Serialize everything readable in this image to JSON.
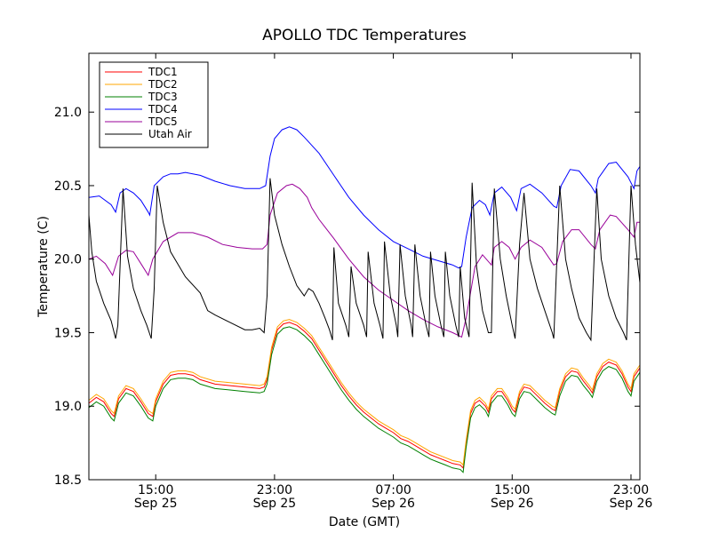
{
  "chart_data": {
    "type": "line",
    "title": "APOLLO TDC Temperatures",
    "xlabel": "Date (GMT)",
    "ylabel": "Temperature (C)",
    "xlim_hours": [
      10.5,
      47.6
    ],
    "ylim": [
      18.5,
      21.4
    ],
    "yticks": [
      18.5,
      19.0,
      19.5,
      20.0,
      20.5,
      21.0
    ],
    "ytick_labels": [
      "18.5",
      "19.0",
      "19.5",
      "20.0",
      "20.5",
      "21.0"
    ],
    "xticks": [
      {
        "hours": 15,
        "time": "15:00",
        "date": "Sep 25"
      },
      {
        "hours": 23,
        "time": "23:00",
        "date": "Sep 25"
      },
      {
        "hours": 31,
        "time": "07:00",
        "date": "Sep 26"
      },
      {
        "hours": 39,
        "time": "15:00",
        "date": "Sep 26"
      },
      {
        "hours": 47,
        "time": "23:00",
        "date": "Sep 26"
      }
    ],
    "legend_position": "top-left",
    "series": [
      {
        "name": "TDC1",
        "color": "#ff0000",
        "offset": 0.0
      },
      {
        "name": "TDC2",
        "color": "#ffa500",
        "offset": 0.02
      },
      {
        "name": "TDC3",
        "color": "#008000",
        "offset": -0.03
      },
      {
        "name": "TDC4",
        "color": "#0000ff",
        "points": [
          [
            10.5,
            20.42
          ],
          [
            11.2,
            20.43
          ],
          [
            12.0,
            20.37
          ],
          [
            12.3,
            20.32
          ],
          [
            12.6,
            20.45
          ],
          [
            13.0,
            20.48
          ],
          [
            13.5,
            20.45
          ],
          [
            14.0,
            20.4
          ],
          [
            14.5,
            20.32
          ],
          [
            14.6,
            20.3
          ],
          [
            14.9,
            20.5
          ],
          [
            15.5,
            20.56
          ],
          [
            16.0,
            20.58
          ],
          [
            16.5,
            20.58
          ],
          [
            17.0,
            20.59
          ],
          [
            18.0,
            20.57
          ],
          [
            19.0,
            20.53
          ],
          [
            20.0,
            20.5
          ],
          [
            21.0,
            20.48
          ],
          [
            22.0,
            20.48
          ],
          [
            22.4,
            20.5
          ],
          [
            22.7,
            20.7
          ],
          [
            23.0,
            20.82
          ],
          [
            23.5,
            20.88
          ],
          [
            24.0,
            20.9
          ],
          [
            24.5,
            20.88
          ],
          [
            25.0,
            20.83
          ],
          [
            26.0,
            20.72
          ],
          [
            27.0,
            20.57
          ],
          [
            28.0,
            20.42
          ],
          [
            29.0,
            20.3
          ],
          [
            30.0,
            20.2
          ],
          [
            31.0,
            20.12
          ],
          [
            32.0,
            20.07
          ],
          [
            33.0,
            20.02
          ],
          [
            34.0,
            19.99
          ],
          [
            35.0,
            19.96
          ],
          [
            35.4,
            19.94
          ],
          [
            35.6,
            19.95
          ],
          [
            35.9,
            20.15
          ],
          [
            36.3,
            20.35
          ],
          [
            36.8,
            20.4
          ],
          [
            37.2,
            20.37
          ],
          [
            37.5,
            20.3
          ],
          [
            37.8,
            20.45
          ],
          [
            38.3,
            20.49
          ],
          [
            38.9,
            20.42
          ],
          [
            39.3,
            20.33
          ],
          [
            39.6,
            20.48
          ],
          [
            40.2,
            20.51
          ],
          [
            41.0,
            20.45
          ],
          [
            41.8,
            20.36
          ],
          [
            42.0,
            20.35
          ],
          [
            42.3,
            20.5
          ],
          [
            42.9,
            20.61
          ],
          [
            43.5,
            20.6
          ],
          [
            44.3,
            20.5
          ],
          [
            44.6,
            20.45
          ],
          [
            44.8,
            20.55
          ],
          [
            45.5,
            20.65
          ],
          [
            46.0,
            20.66
          ],
          [
            46.8,
            20.56
          ],
          [
            47.2,
            20.48
          ],
          [
            47.4,
            20.6
          ],
          [
            47.6,
            20.63
          ]
        ]
      },
      {
        "name": "TDC5",
        "color": "#990099",
        "points": [
          [
            10.5,
            20.0
          ],
          [
            11.0,
            20.02
          ],
          [
            11.6,
            19.97
          ],
          [
            12.1,
            19.89
          ],
          [
            12.5,
            20.02
          ],
          [
            13.0,
            20.06
          ],
          [
            13.5,
            20.05
          ],
          [
            14.0,
            19.97
          ],
          [
            14.5,
            19.89
          ],
          [
            14.8,
            20.0
          ],
          [
            15.5,
            20.12
          ],
          [
            16.5,
            20.18
          ],
          [
            17.5,
            20.18
          ],
          [
            18.5,
            20.15
          ],
          [
            19.5,
            20.1
          ],
          [
            20.5,
            20.08
          ],
          [
            21.5,
            20.07
          ],
          [
            22.2,
            20.07
          ],
          [
            22.5,
            20.1
          ],
          [
            22.7,
            20.3
          ],
          [
            23.2,
            20.45
          ],
          [
            23.8,
            20.5
          ],
          [
            24.2,
            20.51
          ],
          [
            24.7,
            20.48
          ],
          [
            25.2,
            20.42
          ],
          [
            25.5,
            20.35
          ],
          [
            26.0,
            20.27
          ],
          [
            27.0,
            20.14
          ],
          [
            28.0,
            20.0
          ],
          [
            29.0,
            19.88
          ],
          [
            30.0,
            19.79
          ],
          [
            31.0,
            19.72
          ],
          [
            32.0,
            19.65
          ],
          [
            33.0,
            19.59
          ],
          [
            34.0,
            19.54
          ],
          [
            35.0,
            19.5
          ],
          [
            35.6,
            19.47
          ],
          [
            35.9,
            19.6
          ],
          [
            36.5,
            19.95
          ],
          [
            37.0,
            20.03
          ],
          [
            37.6,
            19.96
          ],
          [
            37.8,
            20.08
          ],
          [
            38.3,
            20.12
          ],
          [
            38.8,
            20.08
          ],
          [
            39.2,
            20.0
          ],
          [
            39.6,
            20.08
          ],
          [
            40.2,
            20.13
          ],
          [
            41.0,
            20.08
          ],
          [
            41.8,
            19.96
          ],
          [
            42.0,
            19.97
          ],
          [
            42.4,
            20.12
          ],
          [
            43.0,
            20.2
          ],
          [
            43.5,
            20.2
          ],
          [
            44.3,
            20.1
          ],
          [
            44.6,
            20.07
          ],
          [
            44.9,
            20.2
          ],
          [
            45.6,
            20.3
          ],
          [
            46.0,
            20.29
          ],
          [
            46.8,
            20.2
          ],
          [
            47.2,
            20.15
          ],
          [
            47.4,
            20.25
          ],
          [
            47.6,
            20.25
          ]
        ]
      },
      {
        "name": "Utah Air",
        "color": "#000000",
        "points": [
          [
            10.5,
            20.3
          ],
          [
            10.7,
            20.05
          ],
          [
            11.0,
            19.85
          ],
          [
            11.5,
            19.7
          ],
          [
            12.0,
            19.58
          ],
          [
            12.3,
            19.46
          ],
          [
            12.45,
            19.55
          ],
          [
            12.8,
            20.48
          ],
          [
            13.1,
            20.02
          ],
          [
            13.5,
            19.8
          ],
          [
            14.0,
            19.65
          ],
          [
            14.4,
            19.55
          ],
          [
            14.7,
            19.46
          ],
          [
            14.9,
            19.8
          ],
          [
            15.1,
            20.5
          ],
          [
            15.5,
            20.25
          ],
          [
            16.0,
            20.05
          ],
          [
            17.0,
            19.88
          ],
          [
            18.0,
            19.77
          ],
          [
            18.5,
            19.65
          ],
          [
            19.0,
            19.62
          ],
          [
            20.0,
            19.57
          ],
          [
            21.0,
            19.52
          ],
          [
            21.5,
            19.52
          ],
          [
            22.0,
            19.53
          ],
          [
            22.3,
            19.5
          ],
          [
            22.5,
            19.75
          ],
          [
            22.7,
            20.55
          ],
          [
            23.0,
            20.3
          ],
          [
            23.5,
            20.1
          ],
          [
            24.0,
            19.95
          ],
          [
            24.5,
            19.82
          ],
          [
            25.0,
            19.75
          ],
          [
            25.3,
            19.8
          ],
          [
            25.6,
            19.78
          ],
          [
            26.0,
            19.7
          ],
          [
            26.4,
            19.6
          ],
          [
            26.7,
            19.52
          ],
          [
            26.9,
            19.45
          ],
          [
            27.0,
            20.08
          ],
          [
            27.3,
            19.7
          ],
          [
            27.8,
            19.55
          ],
          [
            28.0,
            19.47
          ],
          [
            28.15,
            19.95
          ],
          [
            28.5,
            19.7
          ],
          [
            29.0,
            19.55
          ],
          [
            29.2,
            19.47
          ],
          [
            29.3,
            20.05
          ],
          [
            29.7,
            19.7
          ],
          [
            30.1,
            19.55
          ],
          [
            30.3,
            19.46
          ],
          [
            30.4,
            20.12
          ],
          [
            30.8,
            19.75
          ],
          [
            31.2,
            19.55
          ],
          [
            31.3,
            19.47
          ],
          [
            31.45,
            20.1
          ],
          [
            31.8,
            19.75
          ],
          [
            32.2,
            19.55
          ],
          [
            32.3,
            19.47
          ],
          [
            32.45,
            20.1
          ],
          [
            32.8,
            19.75
          ],
          [
            33.2,
            19.55
          ],
          [
            33.4,
            19.47
          ],
          [
            33.5,
            20.05
          ],
          [
            33.8,
            19.75
          ],
          [
            34.2,
            19.55
          ],
          [
            34.4,
            19.47
          ],
          [
            34.5,
            20.05
          ],
          [
            34.8,
            19.75
          ],
          [
            35.2,
            19.55
          ],
          [
            35.4,
            19.47
          ],
          [
            35.5,
            19.95
          ],
          [
            35.8,
            19.6
          ],
          [
            36.1,
            19.47
          ],
          [
            36.3,
            20.52
          ],
          [
            36.6,
            19.95
          ],
          [
            37.0,
            19.65
          ],
          [
            37.4,
            19.5
          ],
          [
            37.6,
            19.5
          ],
          [
            37.8,
            20.48
          ],
          [
            38.2,
            20.0
          ],
          [
            38.6,
            19.75
          ],
          [
            39.0,
            19.55
          ],
          [
            39.2,
            19.46
          ],
          [
            39.5,
            20.1
          ],
          [
            39.8,
            20.45
          ],
          [
            40.2,
            20.0
          ],
          [
            40.7,
            19.8
          ],
          [
            41.2,
            19.65
          ],
          [
            41.7,
            19.5
          ],
          [
            41.8,
            19.46
          ],
          [
            42.2,
            20.5
          ],
          [
            42.6,
            20.0
          ],
          [
            43.0,
            19.8
          ],
          [
            43.5,
            19.6
          ],
          [
            44.0,
            19.5
          ],
          [
            44.3,
            19.45
          ],
          [
            44.7,
            20.48
          ],
          [
            45.0,
            20.0
          ],
          [
            45.5,
            19.75
          ],
          [
            46.0,
            19.6
          ],
          [
            46.5,
            19.5
          ],
          [
            46.7,
            19.45
          ],
          [
            47.0,
            20.5
          ],
          [
            47.3,
            20.1
          ],
          [
            47.6,
            19.84
          ]
        ]
      }
    ],
    "tdc_base_points": [
      [
        10.5,
        19.02
      ],
      [
        11.0,
        19.06
      ],
      [
        11.5,
        19.03
      ],
      [
        12.0,
        18.95
      ],
      [
        12.2,
        18.93
      ],
      [
        12.5,
        19.05
      ],
      [
        13.0,
        19.12
      ],
      [
        13.5,
        19.1
      ],
      [
        14.0,
        19.03
      ],
      [
        14.5,
        18.95
      ],
      [
        14.8,
        18.93
      ],
      [
        15.0,
        19.03
      ],
      [
        15.5,
        19.15
      ],
      [
        16.0,
        19.21
      ],
      [
        16.5,
        19.22
      ],
      [
        17.0,
        19.22
      ],
      [
        17.5,
        19.21
      ],
      [
        18.0,
        19.18
      ],
      [
        19.0,
        19.15
      ],
      [
        20.0,
        19.14
      ],
      [
        21.0,
        19.13
      ],
      [
        22.0,
        19.12
      ],
      [
        22.3,
        19.13
      ],
      [
        22.5,
        19.18
      ],
      [
        22.8,
        19.38
      ],
      [
        23.2,
        19.52
      ],
      [
        23.6,
        19.56
      ],
      [
        24.0,
        19.57
      ],
      [
        24.5,
        19.55
      ],
      [
        25.0,
        19.51
      ],
      [
        25.5,
        19.46
      ],
      [
        26.0,
        19.38
      ],
      [
        26.5,
        19.3
      ],
      [
        27.0,
        19.22
      ],
      [
        27.5,
        19.14
      ],
      [
        28.0,
        19.07
      ],
      [
        28.5,
        19.01
      ],
      [
        29.0,
        18.96
      ],
      [
        29.5,
        18.92
      ],
      [
        30.0,
        18.88
      ],
      [
        30.5,
        18.85
      ],
      [
        31.0,
        18.82
      ],
      [
        31.5,
        18.78
      ],
      [
        32.0,
        18.76
      ],
      [
        32.5,
        18.73
      ],
      [
        33.0,
        18.7
      ],
      [
        33.5,
        18.67
      ],
      [
        34.0,
        18.65
      ],
      [
        34.5,
        18.63
      ],
      [
        35.0,
        18.61
      ],
      [
        35.5,
        18.6
      ],
      [
        35.7,
        18.58
      ],
      [
        35.9,
        18.75
      ],
      [
        36.2,
        18.95
      ],
      [
        36.5,
        19.02
      ],
      [
        36.8,
        19.04
      ],
      [
        37.2,
        19.0
      ],
      [
        37.4,
        18.96
      ],
      [
        37.6,
        19.05
      ],
      [
        38.0,
        19.1
      ],
      [
        38.3,
        19.1
      ],
      [
        38.7,
        19.04
      ],
      [
        39.0,
        18.98
      ],
      [
        39.2,
        18.96
      ],
      [
        39.5,
        19.08
      ],
      [
        39.8,
        19.13
      ],
      [
        40.2,
        19.12
      ],
      [
        40.7,
        19.07
      ],
      [
        41.2,
        19.02
      ],
      [
        41.7,
        18.98
      ],
      [
        41.9,
        18.97
      ],
      [
        42.2,
        19.1
      ],
      [
        42.6,
        19.2
      ],
      [
        43.0,
        19.24
      ],
      [
        43.4,
        19.23
      ],
      [
        43.8,
        19.17
      ],
      [
        44.2,
        19.12
      ],
      [
        44.4,
        19.09
      ],
      [
        44.7,
        19.2
      ],
      [
        45.1,
        19.27
      ],
      [
        45.5,
        19.3
      ],
      [
        46.0,
        19.28
      ],
      [
        46.4,
        19.22
      ],
      [
        46.8,
        19.13
      ],
      [
        47.0,
        19.1
      ],
      [
        47.2,
        19.2
      ],
      [
        47.6,
        19.26
      ]
    ]
  }
}
